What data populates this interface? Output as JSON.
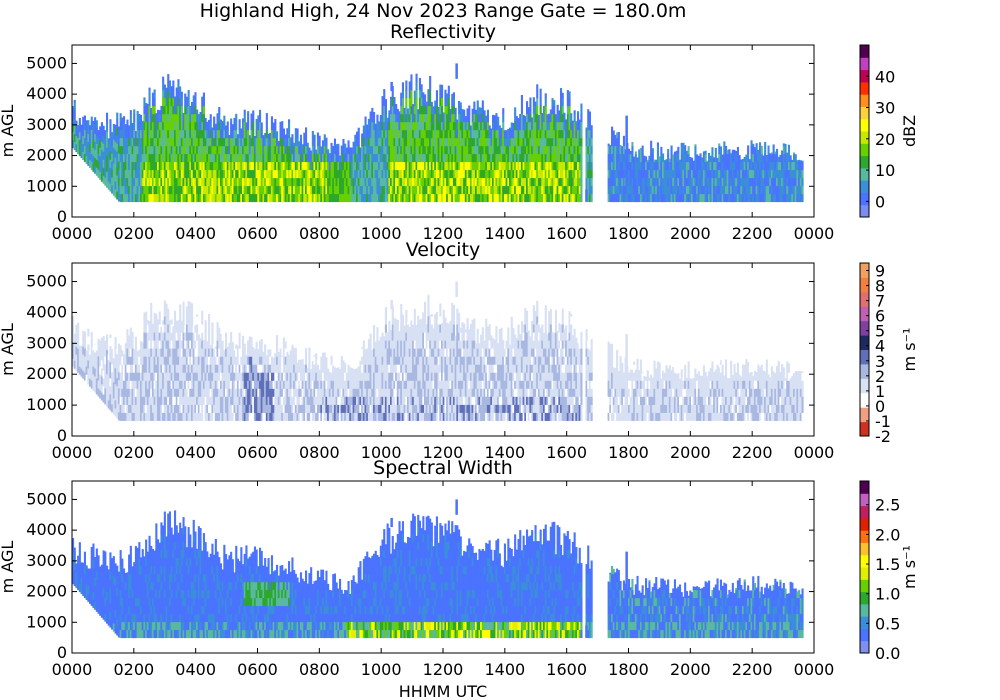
{
  "figure_title": "Highland High, 24 Nov 2023 Range Gate = 180.0m",
  "x_axis_label": "HHMM UTC",
  "x_tick_labels": [
    "0000",
    "0200",
    "0400",
    "0600",
    "0800",
    "1000",
    "1200",
    "1400",
    "1600",
    "1800",
    "2000",
    "2200",
    "0000"
  ],
  "y_tick_labels": [
    "0",
    "1000",
    "2000",
    "3000",
    "4000",
    "5000"
  ],
  "chart_data": [
    {
      "type": "heatmap",
      "title": "Reflectivity",
      "xlabel": "",
      "ylabel": "m AGL",
      "xlim_hours": [
        0,
        24
      ],
      "ylim": [
        0,
        5600
      ],
      "colorbar": {
        "label": "dBZ",
        "vmin": -5,
        "vmax": 50,
        "ticks": [
          "0",
          "10",
          "20",
          "30",
          "40"
        ],
        "tick_values": [
          0,
          10,
          20,
          30,
          40
        ]
      },
      "colors": [
        "#7b8cf3",
        "#4a73ff",
        "#3a8fd8",
        "#58b8a0",
        "#2da82d",
        "#66d000",
        "#c8e800",
        "#ffff00",
        "#ffd040",
        "#ff9020",
        "#ff3000",
        "#c00050",
        "#c040c0",
        "#500050"
      ],
      "echo_top_profile_hhmm_m": [
        [
          0,
          3600
        ],
        [
          100,
          3100
        ],
        [
          200,
          3200
        ],
        [
          230,
          3900
        ],
        [
          300,
          4400
        ],
        [
          400,
          3900
        ],
        [
          500,
          3200
        ],
        [
          600,
          3200
        ],
        [
          700,
          2900
        ],
        [
          800,
          2500
        ],
        [
          900,
          2300
        ],
        [
          1000,
          3800
        ],
        [
          1030,
          4000
        ],
        [
          1100,
          4300
        ],
        [
          1200,
          4100
        ],
        [
          1300,
          3500
        ],
        [
          1400,
          3400
        ],
        [
          1500,
          4000
        ],
        [
          1600,
          3800
        ],
        [
          1800,
          2300
        ],
        [
          2000,
          2200
        ],
        [
          2200,
          2300
        ],
        [
          2330,
          2200
        ]
      ]
    },
    {
      "type": "heatmap",
      "title": "Velocity",
      "xlabel": "",
      "ylabel": "m AGL",
      "xlim_hours": [
        0,
        24
      ],
      "ylim": [
        0,
        5600
      ],
      "colorbar": {
        "label": "m s⁻¹",
        "vmin": -2,
        "vmax": 9.5,
        "ticks": [
          "-2",
          "-1",
          "0",
          "1",
          "2",
          "3",
          "4",
          "5",
          "6",
          "7",
          "8",
          "9"
        ],
        "tick_values": [
          -2,
          -1,
          0,
          1,
          2,
          3,
          4,
          5,
          6,
          7,
          8,
          9
        ]
      },
      "colors": [
        "#d03020",
        "#f0a080",
        "#ffffff",
        "#d8e0f4",
        "#a8b8e0",
        "#6070b8",
        "#202860",
        "#8040a0",
        "#c060b0",
        "#e07070",
        "#f08040",
        "#f0a060"
      ]
    },
    {
      "type": "heatmap",
      "title": "Spectral Width",
      "xlabel": "HHMM UTC",
      "ylabel": "m AGL",
      "xlim_hours": [
        0,
        24
      ],
      "ylim": [
        0,
        5600
      ],
      "colorbar": {
        "label": "m s⁻¹",
        "vmin": 0,
        "vmax": 2.9,
        "ticks": [
          "0.0",
          "0.5",
          "1.0",
          "1.5",
          "2.0",
          "2.5"
        ],
        "tick_values": [
          0,
          0.5,
          1.0,
          1.5,
          2.0,
          2.5
        ]
      },
      "colors": [
        "#8090f0",
        "#4a73ff",
        "#3a8fd8",
        "#58b8a0",
        "#2da82d",
        "#66d000",
        "#e0f000",
        "#ffff00",
        "#ffc030",
        "#ff7010",
        "#e02000",
        "#c02060",
        "#c060c0",
        "#500050"
      ]
    }
  ]
}
